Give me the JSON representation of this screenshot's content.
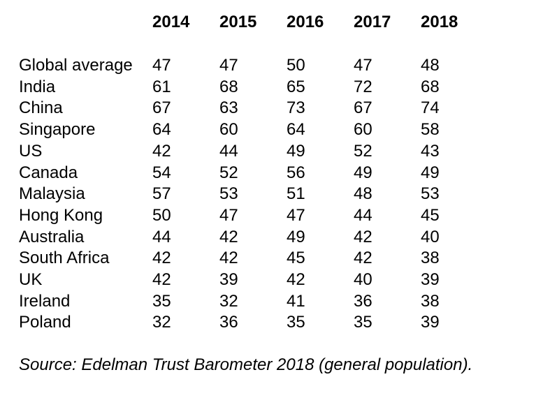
{
  "chart_data": {
    "type": "table",
    "columns": [
      "2014",
      "2015",
      "2016",
      "2017",
      "2018"
    ],
    "rows": [
      {
        "label": "Global average",
        "values": [
          47,
          47,
          50,
          47,
          48
        ]
      },
      {
        "label": "India",
        "values": [
          61,
          68,
          65,
          72,
          68
        ]
      },
      {
        "label": "China",
        "values": [
          67,
          63,
          73,
          67,
          74
        ]
      },
      {
        "label": "Singapore",
        "values": [
          64,
          60,
          64,
          60,
          58
        ]
      },
      {
        "label": "US",
        "values": [
          42,
          44,
          49,
          52,
          43
        ]
      },
      {
        "label": "Canada",
        "values": [
          54,
          52,
          56,
          49,
          49
        ]
      },
      {
        "label": "Malaysia",
        "values": [
          57,
          53,
          51,
          48,
          53
        ]
      },
      {
        "label": "Hong Kong",
        "values": [
          50,
          47,
          47,
          44,
          45
        ]
      },
      {
        "label": "Australia",
        "values": [
          44,
          42,
          49,
          42,
          40
        ]
      },
      {
        "label": "South Africa",
        "values": [
          42,
          42,
          45,
          42,
          38
        ]
      },
      {
        "label": "UK",
        "values": [
          42,
          39,
          42,
          40,
          39
        ]
      },
      {
        "label": "Ireland",
        "values": [
          35,
          32,
          41,
          36,
          38
        ]
      },
      {
        "label": "Poland",
        "values": [
          32,
          36,
          35,
          35,
          39
        ]
      }
    ]
  },
  "source": "Source: Edelman Trust Barometer 2018 (general population)."
}
